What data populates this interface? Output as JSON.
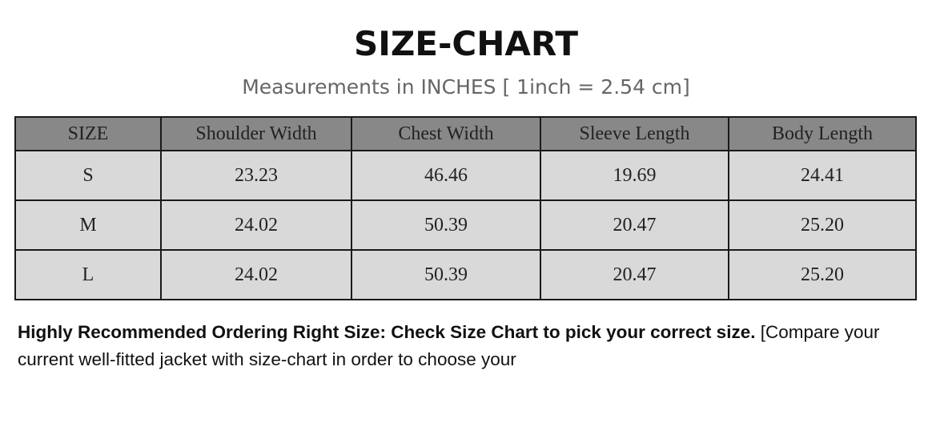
{
  "title": "SIZE-CHART",
  "subtitle": "Measurements in INCHES [ 1inch = 2.54 cm]",
  "table": {
    "headers": [
      "SIZE",
      "Shoulder Width",
      "Chest Width",
      "Sleeve Length",
      "Body Length"
    ],
    "rows": [
      [
        "S",
        "23.23",
        "46.46",
        "19.69",
        "24.41"
      ],
      [
        "M",
        "24.02",
        "50.39",
        "20.47",
        "25.20"
      ],
      [
        "L",
        "24.02",
        "50.39",
        "20.47",
        "25.20"
      ]
    ]
  },
  "note": {
    "bold": "Highly Recommended Ordering Right Size: Check Size Chart to pick your correct size.",
    "text": " [Compare your current well-fitted jacket with size-chart in order to choose your"
  }
}
